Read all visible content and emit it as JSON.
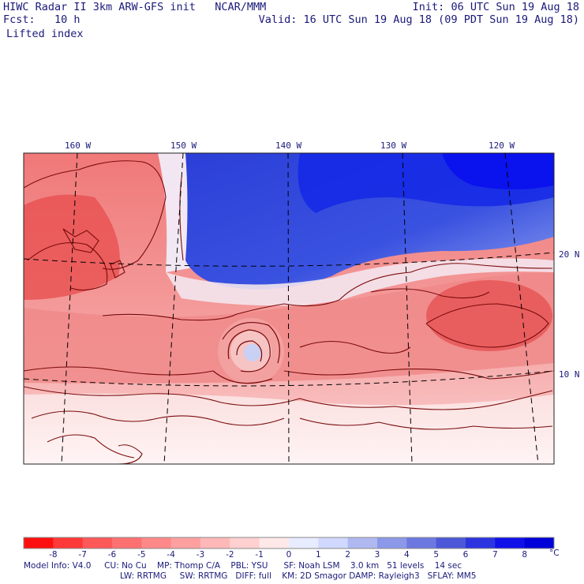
{
  "header": {
    "line1_left": "HIWC Radar II 3km ARW-GFS init   NCAR/MMM",
    "line2_left": "Fcst:   10 h",
    "line1_right": "Init: 06 UTC Sun 19 Aug 18",
    "line2_right": "Valid: 16 UTC Sun 19 Aug 18 (09 PDT Sun 19 Aug 18)",
    "field_label": "Lifted index"
  },
  "map": {
    "lon_labels": [
      "160 W",
      "150 W",
      "140 W",
      "130 W",
      "120 W"
    ],
    "lat_labels": [
      "20 N",
      "10 N"
    ],
    "colors": {
      "border": "#222222",
      "contour": "#7a0a0a",
      "gridline": "#000000"
    }
  },
  "colorbar": {
    "tick_labels": [
      "-8",
      "-7",
      "-6",
      "-5",
      "-4",
      "-3",
      "-2",
      "-1",
      "0",
      "1",
      "2",
      "3",
      "4",
      "5",
      "6",
      "7",
      "8"
    ],
    "unit": "°C",
    "colors": [
      "#ff1010",
      "#ff3838",
      "#ff5858",
      "#ff7070",
      "#ff8888",
      "#ffa0a0",
      "#ffb8b8",
      "#ffd0d0",
      "#ffe8e8",
      "#e8ecff",
      "#d0d8ff",
      "#b0b8f0",
      "#8c98e8",
      "#6c78e0",
      "#4c58d8",
      "#2c34e0",
      "#1010e8",
      "#0000d8"
    ]
  },
  "footer": {
    "line1": "Model Info: V4.0     CU: No Cu    MP: Thomp C/A    PBL: YSU      SF: Noah LSM    3.0 km   51 levels    14 sec",
    "line2": "LW: RRTMG     SW: RRTMG   DIFF: full    KM: 2D Smagor DAMP: Rayleigh3   SFLAY: MM5"
  }
}
